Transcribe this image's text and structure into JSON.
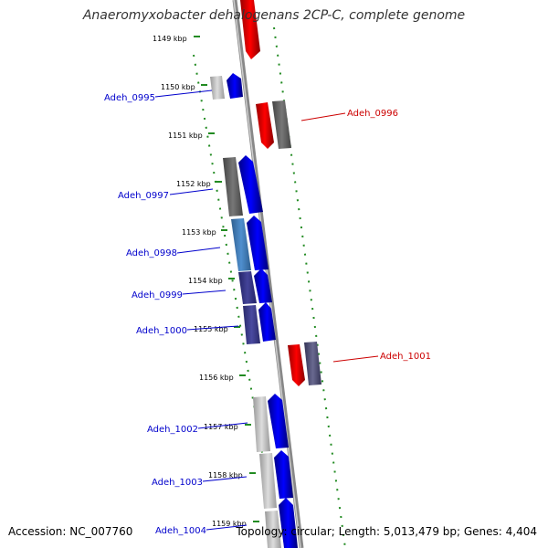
{
  "title": "Anaeromyxobacter dehalogenans 2CP-C, complete genome",
  "accession": "Accession: NC_007760",
  "topology": "Topology: circular; Length: 5,013,479 bp; Genes: 4,404",
  "colors": {
    "forward_gene": "#0000ee",
    "reverse_gene": "#ee0000",
    "tick": "#228b22",
    "backbone": "#888888"
  },
  "ticks": [
    "1149 kbp",
    "1150 kbp",
    "1151 kbp",
    "1152 kbp",
    "1153 kbp",
    "1154 kbp",
    "1155 kbp",
    "1156 kbp",
    "1157 kbp",
    "1158 kbp",
    "1159 kbp"
  ],
  "genes": [
    {
      "label": "Adeh_0995",
      "strand": "forward"
    },
    {
      "label": "Adeh_0996",
      "strand": "reverse"
    },
    {
      "label": "Adeh_0997",
      "strand": "forward"
    },
    {
      "label": "Adeh_0998",
      "strand": "forward"
    },
    {
      "label": "Adeh_0999",
      "strand": "forward"
    },
    {
      "label": "Adeh_1000",
      "strand": "forward"
    },
    {
      "label": "Adeh_1001",
      "strand": "reverse"
    },
    {
      "label": "Adeh_1002",
      "strand": "forward"
    },
    {
      "label": "Adeh_1003",
      "strand": "forward"
    },
    {
      "label": "Adeh_1004",
      "strand": "forward"
    }
  ]
}
